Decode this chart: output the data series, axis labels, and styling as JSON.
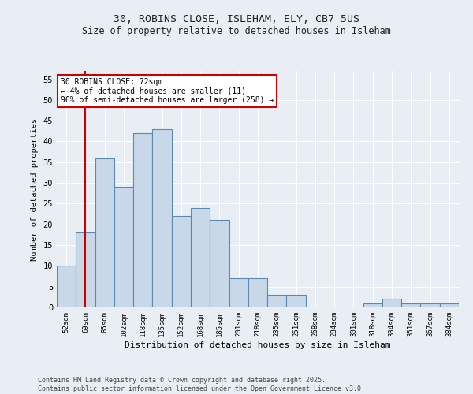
{
  "title1": "30, ROBINS CLOSE, ISLEHAM, ELY, CB7 5US",
  "title2": "Size of property relative to detached houses in Isleham",
  "xlabel": "Distribution of detached houses by size in Isleham",
  "ylabel": "Number of detached properties",
  "categories": [
    "52sqm",
    "69sqm",
    "85sqm",
    "102sqm",
    "118sqm",
    "135sqm",
    "152sqm",
    "168sqm",
    "185sqm",
    "201sqm",
    "218sqm",
    "235sqm",
    "251sqm",
    "268sqm",
    "284sqm",
    "301sqm",
    "318sqm",
    "334sqm",
    "351sqm",
    "367sqm",
    "384sqm"
  ],
  "values": [
    10,
    18,
    36,
    29,
    42,
    43,
    22,
    24,
    21,
    7,
    7,
    3,
    3,
    0,
    0,
    0,
    1,
    2,
    1,
    1,
    1
  ],
  "bar_color": "#c8d8e8",
  "bar_edge_color": "#5a8ab0",
  "vline_x": 1,
  "vline_color": "#cc0000",
  "annotation_line1": "30 ROBINS CLOSE: 72sqm",
  "annotation_line2": "← 4% of detached houses are smaller (11)",
  "annotation_line3": "96% of semi-detached houses are larger (258) →",
  "annotation_box_color": "#ffffff",
  "annotation_box_edge_color": "#cc0000",
  "ylim": [
    0,
    57
  ],
  "yticks": [
    0,
    5,
    10,
    15,
    20,
    25,
    30,
    35,
    40,
    45,
    50,
    55
  ],
  "background_color": "#e8eef4",
  "grid_color": "#ffffff",
  "footer_line1": "Contains HM Land Registry data © Crown copyright and database right 2025.",
  "footer_line2": "Contains public sector information licensed under the Open Government Licence v3.0."
}
